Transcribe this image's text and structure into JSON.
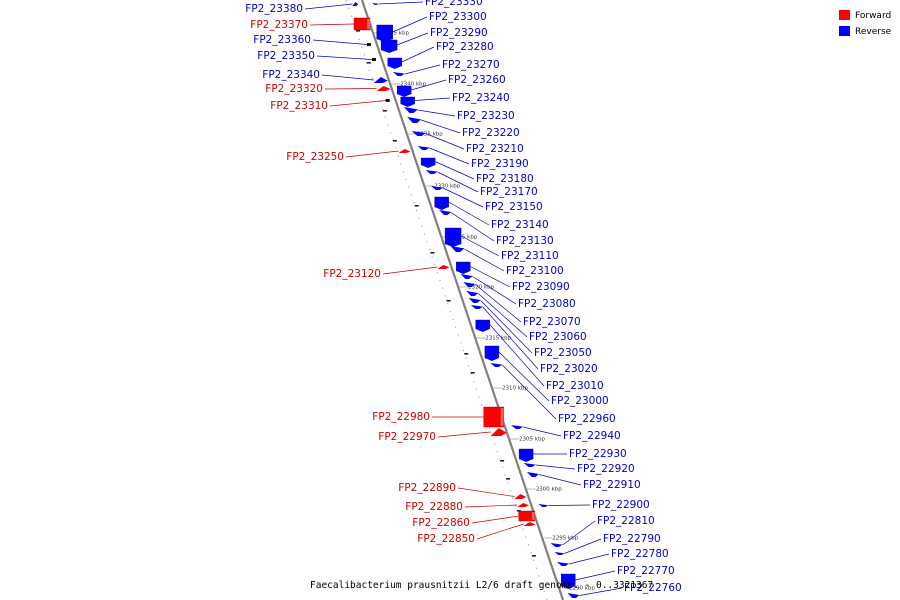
{
  "colors": {
    "forward": "#ff0000",
    "reverse": "#0000ff",
    "axis": "#808080",
    "label_forward": "#cc0000",
    "label_reverse": "#0000cc"
  },
  "legend": {
    "forward_label": "Forward",
    "reverse_label": "Reverse"
  },
  "caption": "Faecalibacterium prausnitzii L2/6 draft genome. - 0..3321367",
  "ticks": [
    "2345 kbp",
    "2340 kbp",
    "2335 kbp",
    "2330 kbp",
    "2325 kbp",
    "2320 kbp",
    "2315 kbp",
    "2310 kbp",
    "2305 kbp",
    "2300 kbp",
    "2295 kbp",
    "2290 kbp"
  ],
  "forward_genes": [
    {
      "label": "FP2_23380",
      "color": "reverse"
    },
    {
      "label": "FP2_23370",
      "color": "forward"
    },
    {
      "label": "FP2_23360",
      "color": "reverse"
    },
    {
      "label": "FP2_23350",
      "color": "reverse"
    },
    {
      "label": "FP2_23340",
      "color": "reverse"
    },
    {
      "label": "FP2_23320",
      "color": "forward"
    },
    {
      "label": "FP2_23310",
      "color": "forward"
    },
    {
      "label": "FP2_23250",
      "color": "forward"
    },
    {
      "label": "FP2_23120",
      "color": "forward"
    },
    {
      "label": "FP2_22980",
      "color": "forward"
    },
    {
      "label": "FP2_22970",
      "color": "forward"
    },
    {
      "label": "FP2_22890",
      "color": "forward"
    },
    {
      "label": "FP2_22880",
      "color": "forward"
    },
    {
      "label": "FP2_22860",
      "color": "forward"
    },
    {
      "label": "FP2_22850",
      "color": "forward"
    }
  ],
  "reverse_genes": [
    {
      "label": "FP2_23330"
    },
    {
      "label": "FP2_23300"
    },
    {
      "label": "FP2_23290"
    },
    {
      "label": "FP2_23280"
    },
    {
      "label": "FP2_23270"
    },
    {
      "label": "FP2_23260"
    },
    {
      "label": "FP2_23240"
    },
    {
      "label": "FP2_23230"
    },
    {
      "label": "FP2_23220"
    },
    {
      "label": "FP2_23210"
    },
    {
      "label": "FP2_23190"
    },
    {
      "label": "FP2_23180"
    },
    {
      "label": "FP2_23170"
    },
    {
      "label": "FP2_23150"
    },
    {
      "label": "FP2_23140"
    },
    {
      "label": "FP2_23130"
    },
    {
      "label": "FP2_23110"
    },
    {
      "label": "FP2_23100"
    },
    {
      "label": "FP2_23090"
    },
    {
      "label": "FP2_23080"
    },
    {
      "label": "FP2_23070"
    },
    {
      "label": "FP2_23060"
    },
    {
      "label": "FP2_23050"
    },
    {
      "label": "FP2_23020"
    },
    {
      "label": "FP2_23010"
    },
    {
      "label": "FP2_23000"
    },
    {
      "label": "FP2_22960"
    },
    {
      "label": "FP2_22940"
    },
    {
      "label": "FP2_22930"
    },
    {
      "label": "FP2_22920"
    },
    {
      "label": "FP2_22910"
    },
    {
      "label": "FP2_22900"
    },
    {
      "label": "FP2_22810"
    },
    {
      "label": "FP2_22790"
    },
    {
      "label": "FP2_22780"
    },
    {
      "label": "FP2_22770"
    },
    {
      "label": "FP2_22760"
    }
  ]
}
